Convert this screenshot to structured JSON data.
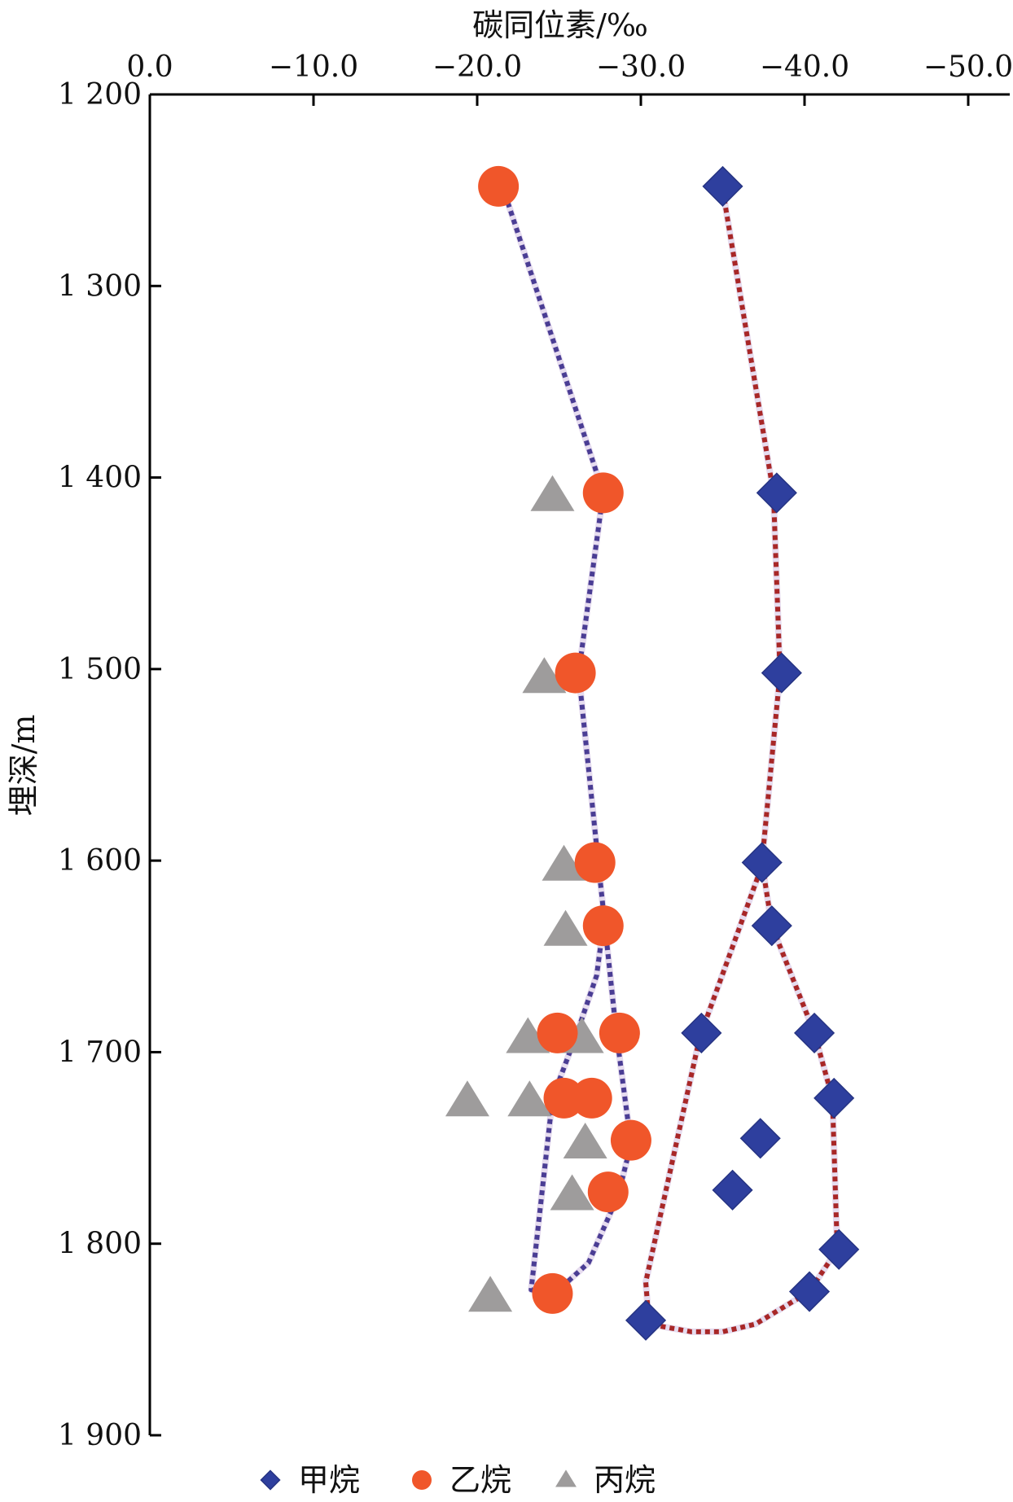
{
  "chart_data": {
    "type": "scatter",
    "title": "",
    "xlabel": "碳同位素/‰",
    "ylabel": "埋深/m",
    "xlim": [
      0,
      -52
    ],
    "ylim": [
      1200,
      1900
    ],
    "x_ticks": [
      0,
      -10,
      -20,
      -30,
      -40,
      -50
    ],
    "x_tick_labels": [
      "0.0",
      "−10.0",
      "−20.0",
      "−30.0",
      "−40.0",
      "−50.0"
    ],
    "y_ticks": [
      1200,
      1300,
      1400,
      1500,
      1600,
      1700,
      1800,
      1900
    ],
    "y_tick_labels": [
      "1 200",
      "1 300",
      "1 400",
      "1 500",
      "1 600",
      "1 700",
      "1 800",
      "1 900"
    ],
    "x_axis_position": "top",
    "y_direction": "depth increases downward",
    "grid": false,
    "legend_position": "bottom",
    "series": [
      {
        "name": "甲烷",
        "marker": "diamond",
        "color": "#2e3f9e",
        "points": [
          {
            "x": -35.0,
            "y": 1248
          },
          {
            "x": -38.3,
            "y": 1408
          },
          {
            "x": -38.6,
            "y": 1502
          },
          {
            "x": -37.4,
            "y": 1601
          },
          {
            "x": -38.0,
            "y": 1634
          },
          {
            "x": -33.7,
            "y": 1690
          },
          {
            "x": -40.6,
            "y": 1690
          },
          {
            "x": -41.8,
            "y": 1724
          },
          {
            "x": -37.3,
            "y": 1745
          },
          {
            "x": -35.6,
            "y": 1772
          },
          {
            "x": -42.1,
            "y": 1803
          },
          {
            "x": -40.3,
            "y": 1825
          },
          {
            "x": -30.3,
            "y": 1840
          }
        ]
      },
      {
        "name": "乙烷",
        "marker": "circle",
        "color": "#f0562a",
        "points": [
          {
            "x": -21.3,
            "y": 1248
          },
          {
            "x": -27.7,
            "y": 1408
          },
          {
            "x": -26.0,
            "y": 1502
          },
          {
            "x": -27.2,
            "y": 1601
          },
          {
            "x": -27.7,
            "y": 1634
          },
          {
            "x": -24.9,
            "y": 1690
          },
          {
            "x": -28.7,
            "y": 1690
          },
          {
            "x": -25.3,
            "y": 1724
          },
          {
            "x": -27.0,
            "y": 1724
          },
          {
            "x": -29.4,
            "y": 1746
          },
          {
            "x": -28.0,
            "y": 1773
          },
          {
            "x": -24.6,
            "y": 1826
          }
        ]
      },
      {
        "name": "丙烷",
        "marker": "triangle",
        "color": "#9e9c9c",
        "points": [
          {
            "x": -24.6,
            "y": 1410
          },
          {
            "x": -24.1,
            "y": 1505
          },
          {
            "x": -25.3,
            "y": 1603
          },
          {
            "x": -25.4,
            "y": 1637
          },
          {
            "x": -23.1,
            "y": 1693
          },
          {
            "x": -26.4,
            "y": 1693
          },
          {
            "x": -19.4,
            "y": 1726
          },
          {
            "x": -23.2,
            "y": 1726
          },
          {
            "x": -26.6,
            "y": 1748
          },
          {
            "x": -25.8,
            "y": 1775
          },
          {
            "x": -20.8,
            "y": 1828
          }
        ]
      }
    ],
    "trend_lines": [
      {
        "series": "乙烷",
        "style": "dotted",
        "color": "#4a3d94",
        "points": [
          {
            "x": -21.7,
            "y": 1252
          },
          {
            "x": -27.7,
            "y": 1408
          },
          {
            "x": -26.2,
            "y": 1502
          },
          {
            "x": -27.4,
            "y": 1601
          },
          {
            "x": -28.5,
            "y": 1690
          },
          {
            "x": -29.4,
            "y": 1748
          },
          {
            "x": -28.6,
            "y": 1775
          },
          {
            "x": -26.8,
            "y": 1810
          },
          {
            "x": -24.6,
            "y": 1827
          },
          {
            "x": -23.3,
            "y": 1824
          },
          {
            "x": -24.6,
            "y": 1724
          },
          {
            "x": -26.1,
            "y": 1690
          },
          {
            "x": -27.3,
            "y": 1660
          },
          {
            "x": -27.7,
            "y": 1634
          }
        ]
      },
      {
        "series": "甲烷",
        "style": "dotted",
        "color": "#a82727",
        "points": [
          {
            "x": -35.0,
            "y": 1250
          },
          {
            "x": -38.1,
            "y": 1408
          },
          {
            "x": -38.5,
            "y": 1502
          },
          {
            "x": -37.4,
            "y": 1601
          },
          {
            "x": -38.0,
            "y": 1634
          },
          {
            "x": -40.6,
            "y": 1690
          },
          {
            "x": -41.7,
            "y": 1724
          },
          {
            "x": -42.0,
            "y": 1803
          },
          {
            "x": -40.3,
            "y": 1825
          },
          {
            "x": -37.0,
            "y": 1842
          },
          {
            "x": -35.0,
            "y": 1846
          },
          {
            "x": -33.1,
            "y": 1846
          },
          {
            "x": -30.5,
            "y": 1842
          },
          {
            "x": -30.3,
            "y": 1820
          },
          {
            "x": -33.6,
            "y": 1692
          },
          {
            "x": -35.6,
            "y": 1645
          },
          {
            "x": -37.3,
            "y": 1605
          }
        ]
      }
    ]
  }
}
